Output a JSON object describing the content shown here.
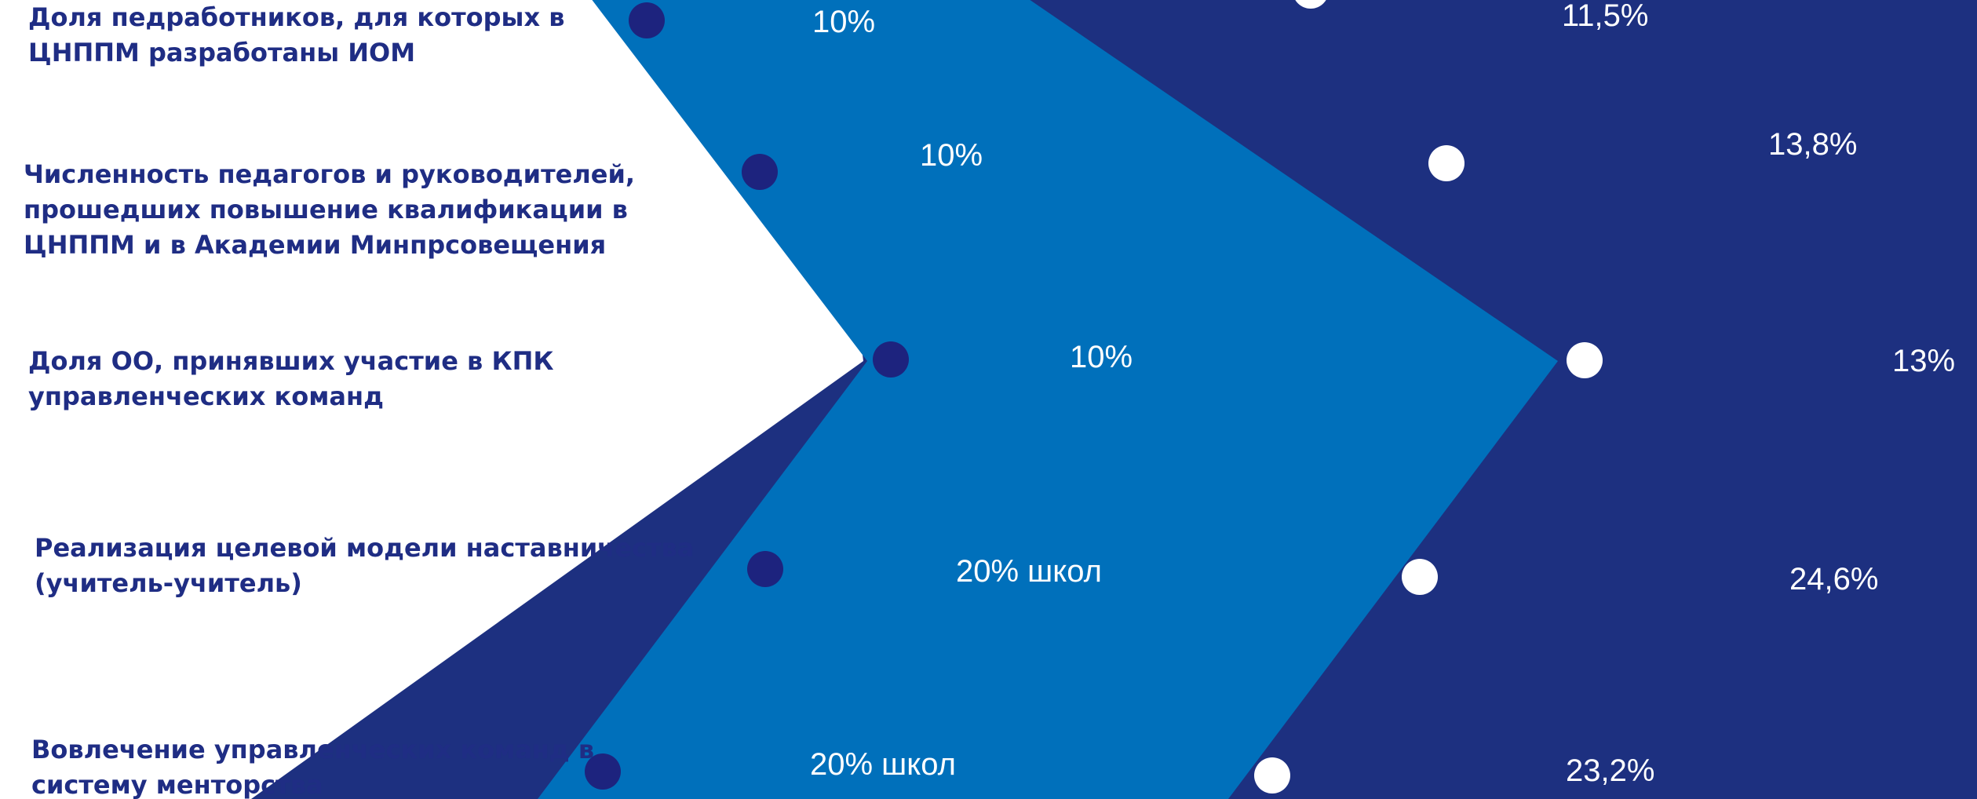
{
  "colors": {
    "band_light": "#0070bb",
    "band_dark": "#1d3080",
    "label_text": "#1f2d84",
    "baseline_dot": "#1d237e",
    "target_dot": "#ffffff",
    "value_text": "#ffffff"
  },
  "rows": [
    {
      "label": "Доля педработников, для которых в\nЦНППМ разработаны ИОМ",
      "baseline_value": "10%",
      "target_value": "11,5%"
    },
    {
      "label": "Численность педагогов и руководителей,\nпрошедших повышение квалификации в\nЦНППМ и в Академии Минпрсовещения",
      "baseline_value": "10%",
      "target_value": "13,8%"
    },
    {
      "label": "Доля ОО, принявших участие в КПК\nуправленческих команд",
      "baseline_value": "10%",
      "target_value": "13%"
    },
    {
      "label": "Реализация целевой модели наставничества\n(учитель-учитель)",
      "baseline_value": "20% школ",
      "target_value": "24,6%"
    },
    {
      "label": "Вовлечение управленческих команд в\nсистему менторства",
      "baseline_value": "20% школ",
      "target_value": "23,2%"
    }
  ]
}
